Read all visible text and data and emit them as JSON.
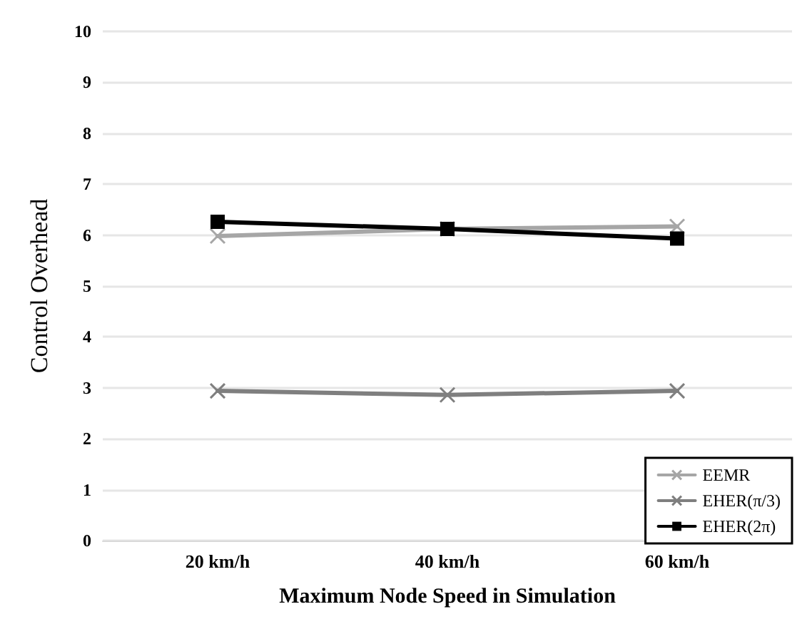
{
  "chart_data": {
    "type": "line",
    "xlabel": "Maximum Node Speed in Simulation",
    "ylabel": "Control Overhead",
    "categories": [
      "20 km/h",
      "40 km/h",
      "60 km/h"
    ],
    "series": [
      {
        "name": "EEMR",
        "color": "#a6a6a6",
        "marker": "cross",
        "values": [
          5.98,
          6.12,
          6.17
        ]
      },
      {
        "name": "EHER(π/3)",
        "color": "#7f7f7f",
        "marker": "cross",
        "values": [
          2.94,
          2.86,
          2.94
        ]
      },
      {
        "name": "EHER(2π)",
        "color": "#000000",
        "marker": "square",
        "values": [
          6.26,
          6.12,
          5.93
        ]
      }
    ],
    "ylim": [
      0,
      10
    ],
    "yticks": [
      0,
      1,
      2,
      3,
      4,
      5,
      6,
      7,
      8,
      9,
      10
    ],
    "grid": "y",
    "legend": "bottom right",
    "line_style": "solid"
  }
}
